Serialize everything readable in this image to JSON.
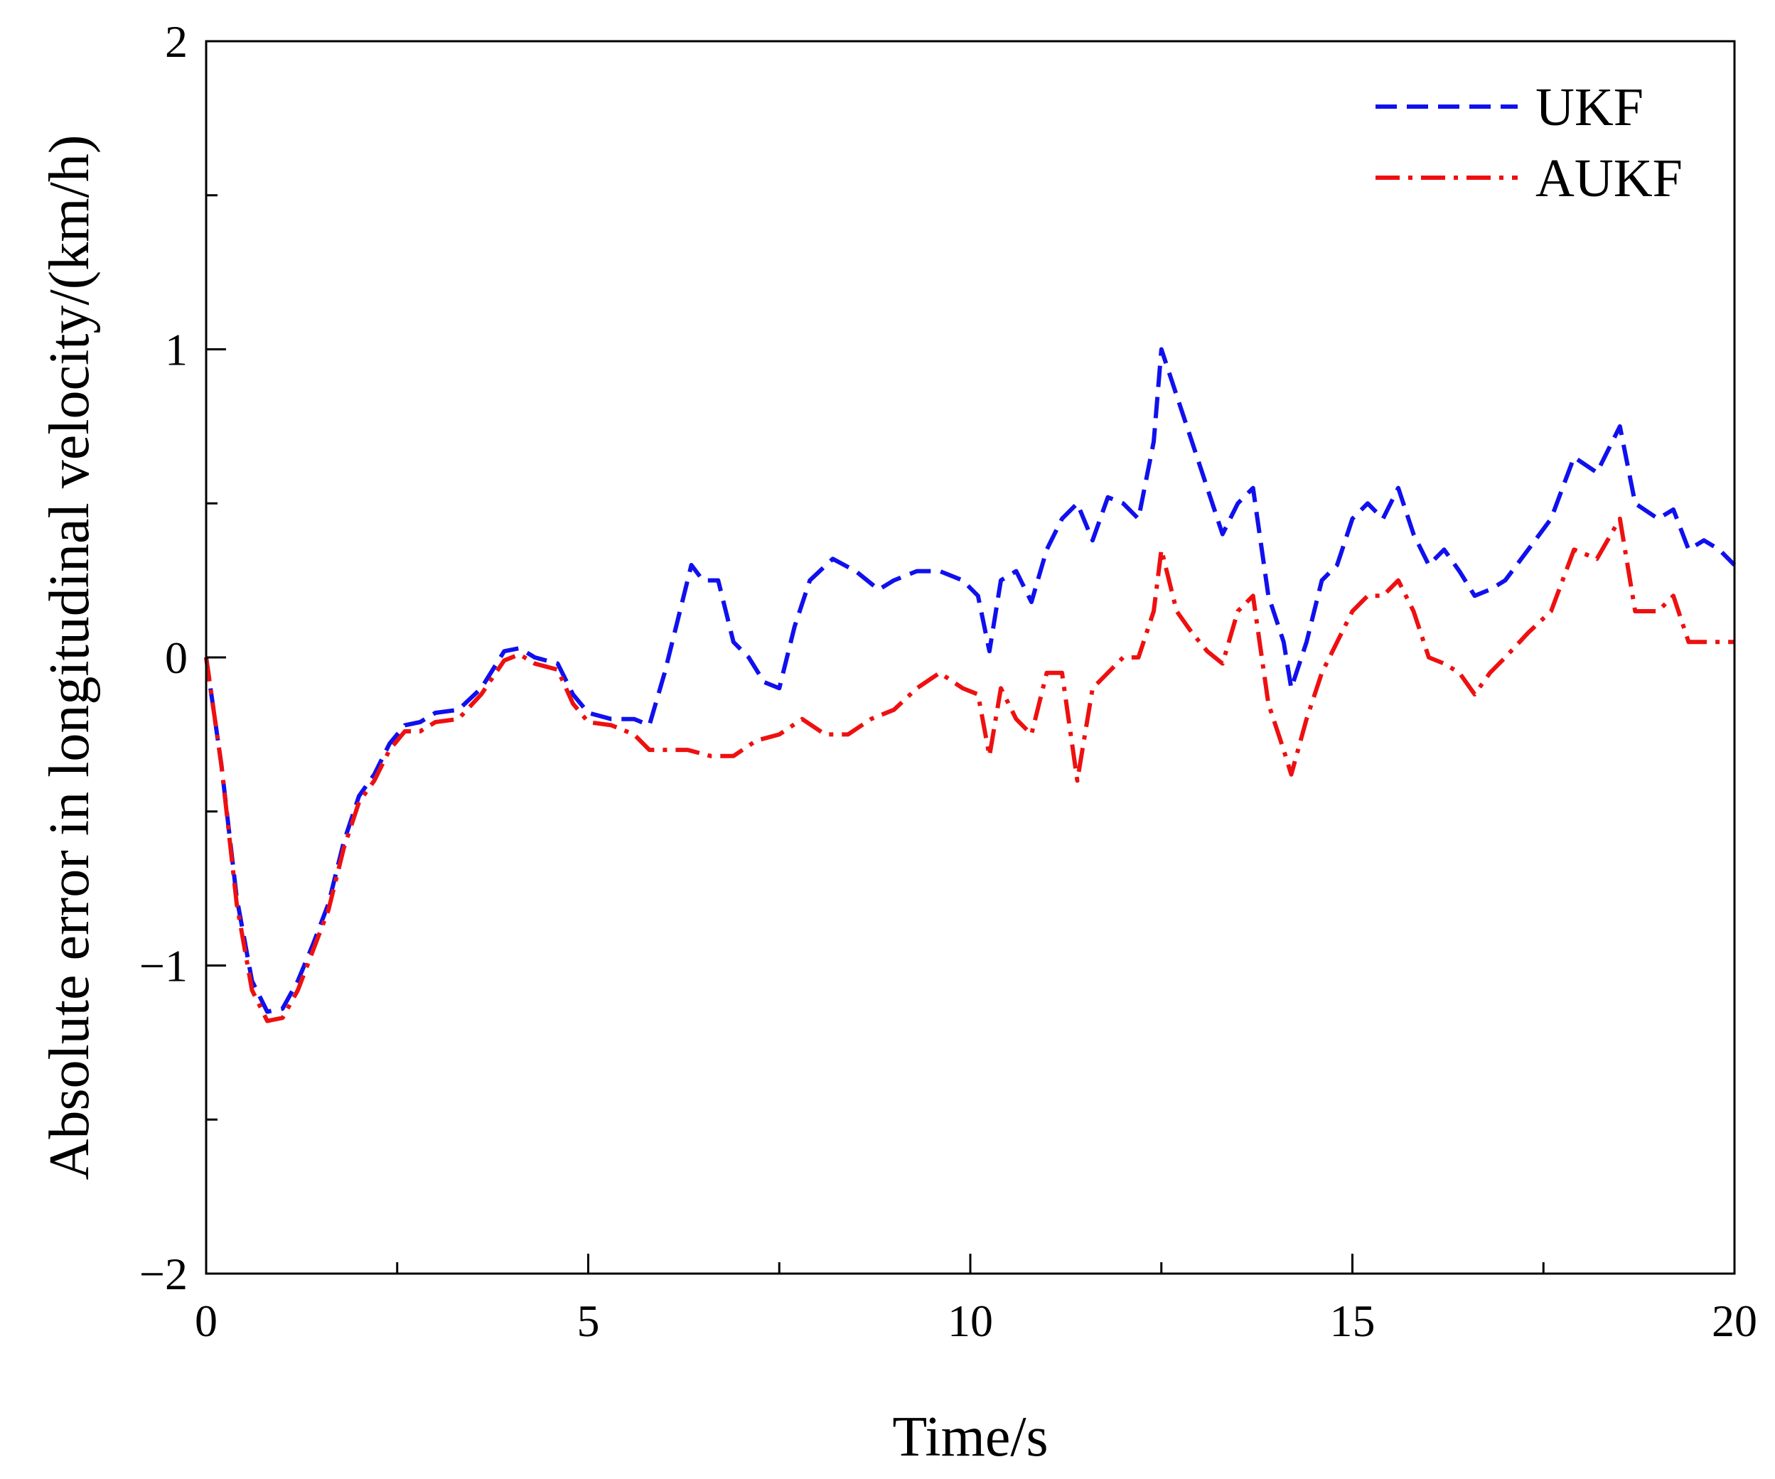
{
  "chart_data": {
    "type": "line",
    "title": "",
    "xlabel": "Time/s",
    "ylabel": "Absolute error in longitudinal velocity/(km/h)",
    "xlim": [
      0,
      20
    ],
    "ylim": [
      -2,
      2
    ],
    "x_ticks": [
      0,
      5,
      10,
      15,
      20
    ],
    "y_ticks": [
      -2,
      -1,
      0,
      1,
      2
    ],
    "x_tick_labels": [
      "0",
      "5",
      "10",
      "15",
      "20"
    ],
    "y_tick_labels": [
      "−2",
      "−1",
      "0",
      "1",
      "2"
    ],
    "grid": false,
    "legend_position": "top-right",
    "series": [
      {
        "name": "UKF",
        "color": "#1010ee",
        "line_style": "dashed",
        "points": [
          [
            0,
            0
          ],
          [
            0.2,
            -0.35
          ],
          [
            0.4,
            -0.78
          ],
          [
            0.6,
            -1.05
          ],
          [
            0.8,
            -1.15
          ],
          [
            1.0,
            -1.14
          ],
          [
            1.2,
            -1.05
          ],
          [
            1.4,
            -0.93
          ],
          [
            1.6,
            -0.8
          ],
          [
            1.8,
            -0.6
          ],
          [
            2.0,
            -0.45
          ],
          [
            2.2,
            -0.38
          ],
          [
            2.4,
            -0.28
          ],
          [
            2.6,
            -0.22
          ],
          [
            2.8,
            -0.21
          ],
          [
            3.0,
            -0.18
          ],
          [
            3.3,
            -0.17
          ],
          [
            3.6,
            -0.1
          ],
          [
            3.9,
            0.02
          ],
          [
            4.1,
            0.03
          ],
          [
            4.3,
            0.0
          ],
          [
            4.6,
            -0.02
          ],
          [
            4.8,
            -0.12
          ],
          [
            5.0,
            -0.18
          ],
          [
            5.3,
            -0.2
          ],
          [
            5.6,
            -0.2
          ],
          [
            5.8,
            -0.22
          ],
          [
            6.0,
            -0.05
          ],
          [
            6.2,
            0.15
          ],
          [
            6.35,
            0.3
          ],
          [
            6.5,
            0.25
          ],
          [
            6.7,
            0.25
          ],
          [
            6.9,
            0.05
          ],
          [
            7.1,
            0.0
          ],
          [
            7.3,
            -0.08
          ],
          [
            7.5,
            -0.1
          ],
          [
            7.7,
            0.1
          ],
          [
            7.9,
            0.25
          ],
          [
            8.2,
            0.32
          ],
          [
            8.5,
            0.28
          ],
          [
            8.8,
            0.22
          ],
          [
            9.0,
            0.25
          ],
          [
            9.3,
            0.28
          ],
          [
            9.6,
            0.28
          ],
          [
            9.9,
            0.25
          ],
          [
            10.1,
            0.2
          ],
          [
            10.25,
            0.02
          ],
          [
            10.4,
            0.25
          ],
          [
            10.6,
            0.28
          ],
          [
            10.8,
            0.18
          ],
          [
            11.0,
            0.35
          ],
          [
            11.2,
            0.45
          ],
          [
            11.4,
            0.5
          ],
          [
            11.6,
            0.38
          ],
          [
            11.8,
            0.52
          ],
          [
            12.0,
            0.5
          ],
          [
            12.2,
            0.45
          ],
          [
            12.4,
            0.7
          ],
          [
            12.5,
            1.0
          ],
          [
            12.7,
            0.85
          ],
          [
            12.9,
            0.7
          ],
          [
            13.1,
            0.55
          ],
          [
            13.3,
            0.4
          ],
          [
            13.5,
            0.5
          ],
          [
            13.7,
            0.55
          ],
          [
            13.9,
            0.2
          ],
          [
            14.1,
            0.05
          ],
          [
            14.2,
            -0.1
          ],
          [
            14.4,
            0.05
          ],
          [
            14.6,
            0.25
          ],
          [
            14.8,
            0.3
          ],
          [
            15.0,
            0.45
          ],
          [
            15.2,
            0.5
          ],
          [
            15.4,
            0.45
          ],
          [
            15.6,
            0.55
          ],
          [
            15.8,
            0.4
          ],
          [
            16.0,
            0.3
          ],
          [
            16.2,
            0.35
          ],
          [
            16.4,
            0.28
          ],
          [
            16.6,
            0.2
          ],
          [
            16.8,
            0.22
          ],
          [
            17.0,
            0.25
          ],
          [
            17.3,
            0.35
          ],
          [
            17.6,
            0.45
          ],
          [
            17.9,
            0.65
          ],
          [
            18.2,
            0.6
          ],
          [
            18.5,
            0.75
          ],
          [
            18.7,
            0.5
          ],
          [
            19.0,
            0.45
          ],
          [
            19.2,
            0.48
          ],
          [
            19.4,
            0.35
          ],
          [
            19.6,
            0.38
          ],
          [
            19.8,
            0.35
          ],
          [
            20.0,
            0.3
          ]
        ]
      },
      {
        "name": "AUKF",
        "color": "#ee1010",
        "line_style": "dash-dot",
        "points": [
          [
            0,
            0
          ],
          [
            0.2,
            -0.35
          ],
          [
            0.4,
            -0.8
          ],
          [
            0.6,
            -1.08
          ],
          [
            0.8,
            -1.18
          ],
          [
            1.0,
            -1.17
          ],
          [
            1.2,
            -1.08
          ],
          [
            1.4,
            -0.95
          ],
          [
            1.6,
            -0.82
          ],
          [
            1.8,
            -0.62
          ],
          [
            2.0,
            -0.47
          ],
          [
            2.2,
            -0.4
          ],
          [
            2.4,
            -0.3
          ],
          [
            2.6,
            -0.24
          ],
          [
            2.8,
            -0.24
          ],
          [
            3.0,
            -0.21
          ],
          [
            3.3,
            -0.2
          ],
          [
            3.6,
            -0.12
          ],
          [
            3.9,
            -0.01
          ],
          [
            4.1,
            0.01
          ],
          [
            4.3,
            -0.02
          ],
          [
            4.6,
            -0.04
          ],
          [
            4.8,
            -0.15
          ],
          [
            5.0,
            -0.21
          ],
          [
            5.3,
            -0.22
          ],
          [
            5.6,
            -0.25
          ],
          [
            5.8,
            -0.3
          ],
          [
            6.0,
            -0.3
          ],
          [
            6.3,
            -0.3
          ],
          [
            6.6,
            -0.32
          ],
          [
            6.9,
            -0.32
          ],
          [
            7.2,
            -0.27
          ],
          [
            7.5,
            -0.25
          ],
          [
            7.8,
            -0.2
          ],
          [
            8.1,
            -0.25
          ],
          [
            8.4,
            -0.25
          ],
          [
            8.7,
            -0.2
          ],
          [
            9.0,
            -0.17
          ],
          [
            9.3,
            -0.1
          ],
          [
            9.6,
            -0.05
          ],
          [
            9.9,
            -0.1
          ],
          [
            10.1,
            -0.12
          ],
          [
            10.25,
            -0.32
          ],
          [
            10.4,
            -0.1
          ],
          [
            10.6,
            -0.2
          ],
          [
            10.8,
            -0.25
          ],
          [
            11.0,
            -0.05
          ],
          [
            11.2,
            -0.05
          ],
          [
            11.4,
            -0.4
          ],
          [
            11.6,
            -0.1
          ],
          [
            11.8,
            -0.05
          ],
          [
            12.0,
            0.0
          ],
          [
            12.2,
            0.0
          ],
          [
            12.4,
            0.15
          ],
          [
            12.5,
            0.35
          ],
          [
            12.7,
            0.15
          ],
          [
            12.9,
            0.08
          ],
          [
            13.1,
            0.02
          ],
          [
            13.3,
            -0.02
          ],
          [
            13.5,
            0.15
          ],
          [
            13.7,
            0.2
          ],
          [
            13.9,
            -0.15
          ],
          [
            14.1,
            -0.3
          ],
          [
            14.2,
            -0.38
          ],
          [
            14.4,
            -0.2
          ],
          [
            14.6,
            -0.05
          ],
          [
            14.8,
            0.05
          ],
          [
            15.0,
            0.15
          ],
          [
            15.2,
            0.2
          ],
          [
            15.4,
            0.2
          ],
          [
            15.6,
            0.25
          ],
          [
            15.8,
            0.15
          ],
          [
            16.0,
            0.0
          ],
          [
            16.2,
            -0.02
          ],
          [
            16.4,
            -0.05
          ],
          [
            16.6,
            -0.12
          ],
          [
            16.8,
            -0.05
          ],
          [
            17.0,
            0.0
          ],
          [
            17.3,
            0.08
          ],
          [
            17.6,
            0.15
          ],
          [
            17.9,
            0.35
          ],
          [
            18.2,
            0.32
          ],
          [
            18.5,
            0.45
          ],
          [
            18.7,
            0.15
          ],
          [
            19.0,
            0.15
          ],
          [
            19.2,
            0.2
          ],
          [
            19.4,
            0.05
          ],
          [
            19.6,
            0.05
          ],
          [
            19.8,
            0.05
          ],
          [
            20.0,
            0.05
          ]
        ]
      }
    ]
  }
}
